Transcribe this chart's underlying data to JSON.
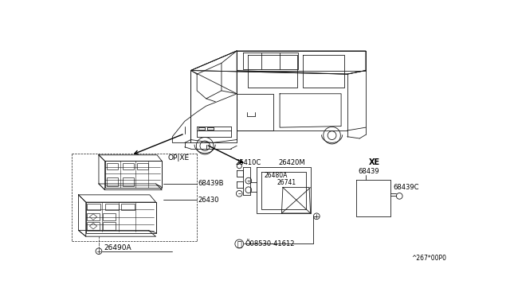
{
  "background_color": "#ffffff",
  "fig_width": 6.4,
  "fig_height": 3.72,
  "dpi": 100,
  "diagram_code": "^267*00P0",
  "labels": {
    "OP_XE": "OP|XE",
    "XE": "XE",
    "26410C": "26410C",
    "26420M": "26420M",
    "26480A": "26480A",
    "26741": "26741",
    "08530_41612": "Õ08530-41612",
    "68439B": "68439B",
    "26430": "26430",
    "26490A": "26490A",
    "68439": "68439",
    "68439C": "68439C"
  },
  "lc": "#1a1a1a",
  "lw": 0.6
}
